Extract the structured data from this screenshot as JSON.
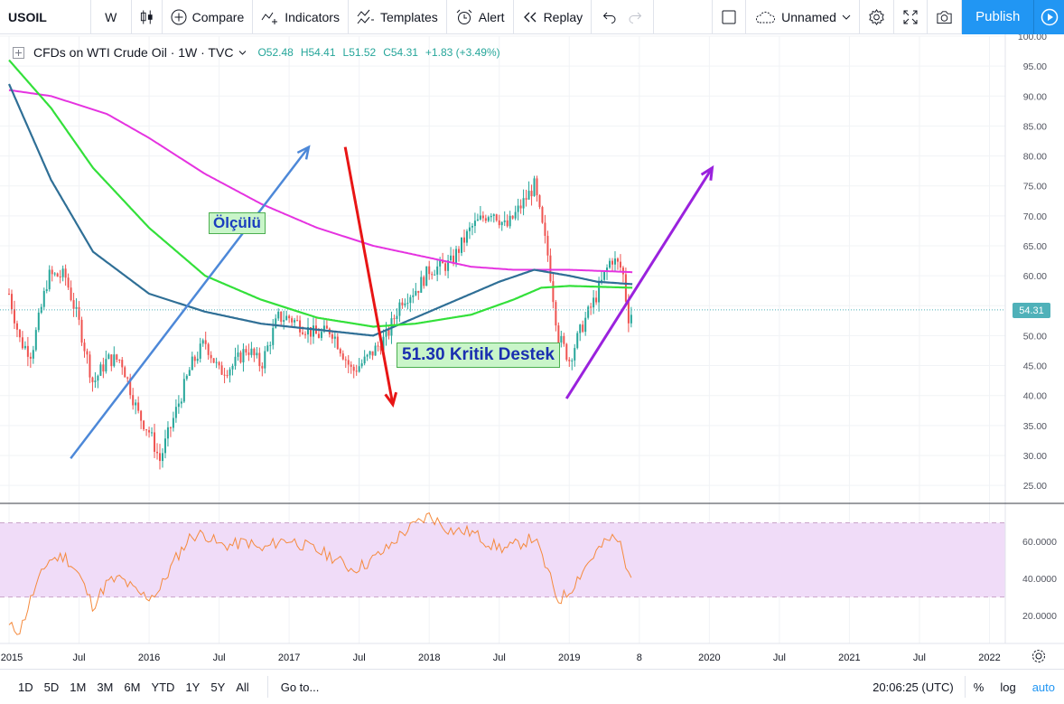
{
  "toolbar": {
    "symbol": "USOIL",
    "interval": "W",
    "compare": "Compare",
    "indicators": "Indicators",
    "templates": "Templates",
    "alert": "Alert",
    "replay": "Replay",
    "layout_name": "Unnamed",
    "publish": "Publish"
  },
  "legend": {
    "title": "CFDs on WTI Crude Oil · 1W · TVC",
    "open": "O52.48",
    "high": "H54.41",
    "low": "L51.52",
    "close": "C54.31",
    "change": "+1.83 (+3.49%)"
  },
  "annotations": {
    "olculu": "Ölçülü",
    "destek": "51.30 Kritik Destek"
  },
  "price_tag": "54.31",
  "colors": {
    "ema_green": "#33e03a",
    "sma_blue": "#2f6f96",
    "sma_magenta": "#e533e0",
    "rsi": "#f58a3d",
    "rsi_band": "#f0dcf8",
    "arrow_blue": "#4d88d8",
    "arrow_red": "#e81515",
    "arrow_purple": "#9a22dd",
    "up": "#26a69a",
    "down": "#ef5350"
  },
  "chart_data": {
    "type": "candlestick",
    "y_ticks": [
      "100.00",
      "95.00",
      "90.00",
      "85.00",
      "80.00",
      "75.00",
      "70.00",
      "65.00",
      "60.00",
      "55.00",
      "50.00",
      "45.00",
      "40.00",
      "35.00",
      "30.00",
      "25.00"
    ],
    "ylim": [
      22,
      100
    ],
    "x_ticks": [
      "2015",
      "Jul",
      "2016",
      "Jul",
      "2017",
      "Jul",
      "2018",
      "Jul",
      "2019",
      "8",
      "2020",
      "Jul",
      "2021",
      "Jul",
      "2022"
    ],
    "last_price": 54.31,
    "price_anchors": [
      [
        2015.0,
        57
      ],
      [
        2015.08,
        49
      ],
      [
        2015.16,
        47
      ],
      [
        2015.28,
        60
      ],
      [
        2015.4,
        60
      ],
      [
        2015.5,
        52
      ],
      [
        2015.6,
        42
      ],
      [
        2015.7,
        46
      ],
      [
        2015.8,
        46
      ],
      [
        2015.92,
        37
      ],
      [
        2016.0,
        34
      ],
      [
        2016.08,
        29
      ],
      [
        2016.1,
        31
      ],
      [
        2016.2,
        38
      ],
      [
        2016.3,
        45
      ],
      [
        2016.4,
        49
      ],
      [
        2016.5,
        44
      ],
      [
        2016.6,
        45
      ],
      [
        2016.7,
        48
      ],
      [
        2016.8,
        45
      ],
      [
        2016.92,
        53
      ],
      [
        2017.0,
        53
      ],
      [
        2017.2,
        50
      ],
      [
        2017.3,
        51
      ],
      [
        2017.45,
        44
      ],
      [
        2017.55,
        46
      ],
      [
        2017.7,
        50
      ],
      [
        2017.8,
        56
      ],
      [
        2017.92,
        58
      ],
      [
        2018.0,
        61
      ],
      [
        2018.15,
        62
      ],
      [
        2018.3,
        68
      ],
      [
        2018.45,
        71
      ],
      [
        2018.55,
        68
      ],
      [
        2018.75,
        75
      ],
      [
        2018.85,
        63
      ],
      [
        2018.92,
        50
      ],
      [
        2019.0,
        46
      ],
      [
        2019.1,
        52
      ],
      [
        2019.2,
        57
      ],
      [
        2019.3,
        63
      ],
      [
        2019.38,
        61
      ],
      [
        2019.42,
        53
      ],
      [
        2019.46,
        54.3
      ]
    ],
    "indicators": {
      "sma_200_magenta": [
        [
          2015.0,
          91
        ],
        [
          2015.3,
          90
        ],
        [
          2015.7,
          87
        ],
        [
          2016.0,
          83
        ],
        [
          2016.4,
          77
        ],
        [
          2016.8,
          72
        ],
        [
          2017.2,
          68
        ],
        [
          2017.6,
          65
        ],
        [
          2018.0,
          63
        ],
        [
          2018.3,
          61.5
        ],
        [
          2018.6,
          61
        ],
        [
          2019.0,
          61
        ],
        [
          2019.45,
          60.6
        ]
      ],
      "sma_100_blue": [
        [
          2015.0,
          92
        ],
        [
          2015.3,
          76
        ],
        [
          2015.6,
          64
        ],
        [
          2016.0,
          57
        ],
        [
          2016.4,
          54
        ],
        [
          2016.8,
          52
        ],
        [
          2017.2,
          51
        ],
        [
          2017.6,
          50
        ],
        [
          2017.9,
          53
        ],
        [
          2018.2,
          56
        ],
        [
          2018.5,
          59
        ],
        [
          2018.75,
          61
        ],
        [
          2019.0,
          60
        ],
        [
          2019.2,
          59
        ],
        [
          2019.45,
          58.6
        ]
      ],
      "ema_green": [
        [
          2015.0,
          96
        ],
        [
          2015.3,
          88
        ],
        [
          2015.6,
          78
        ],
        [
          2016.0,
          68
        ],
        [
          2016.4,
          60
        ],
        [
          2016.8,
          56
        ],
        [
          2017.2,
          53
        ],
        [
          2017.6,
          51.5
        ],
        [
          2017.9,
          52
        ],
        [
          2018.3,
          53.5
        ],
        [
          2018.6,
          56
        ],
        [
          2018.8,
          58
        ],
        [
          2019.0,
          58.3
        ],
        [
          2019.45,
          58
        ]
      ]
    },
    "rsi": {
      "y_ticks": [
        "60.0000",
        "40.0000",
        "20.0000"
      ],
      "ylim": [
        5,
        80
      ],
      "band": [
        30,
        70
      ],
      "anchors": [
        [
          2015.0,
          14
        ],
        [
          2015.08,
          12
        ],
        [
          2015.16,
          30
        ],
        [
          2015.28,
          50
        ],
        [
          2015.4,
          52
        ],
        [
          2015.5,
          42
        ],
        [
          2015.6,
          25
        ],
        [
          2015.7,
          38
        ],
        [
          2015.8,
          40
        ],
        [
          2015.92,
          32
        ],
        [
          2016.0,
          30
        ],
        [
          2016.08,
          34
        ],
        [
          2016.1,
          38
        ],
        [
          2016.2,
          52
        ],
        [
          2016.3,
          63
        ],
        [
          2016.4,
          64
        ],
        [
          2016.5,
          58
        ],
        [
          2016.6,
          58
        ],
        [
          2016.7,
          60
        ],
        [
          2016.8,
          55
        ],
        [
          2016.92,
          60
        ],
        [
          2017.0,
          61
        ],
        [
          2017.2,
          55
        ],
        [
          2017.3,
          52
        ],
        [
          2017.45,
          45
        ],
        [
          2017.55,
          48
        ],
        [
          2017.7,
          56
        ],
        [
          2017.8,
          64
        ],
        [
          2017.92,
          70
        ],
        [
          2018.0,
          74
        ],
        [
          2018.15,
          66
        ],
        [
          2018.3,
          65
        ],
        [
          2018.45,
          58
        ],
        [
          2018.55,
          56
        ],
        [
          2018.75,
          62
        ],
        [
          2018.85,
          43
        ],
        [
          2018.92,
          28
        ],
        [
          2019.0,
          33
        ],
        [
          2019.1,
          45
        ],
        [
          2019.2,
          55
        ],
        [
          2019.3,
          62
        ],
        [
          2019.38,
          58
        ],
        [
          2019.42,
          40
        ],
        [
          2019.46,
          42
        ]
      ]
    }
  },
  "bottom": {
    "ranges": [
      "1D",
      "5D",
      "1M",
      "3M",
      "6M",
      "YTD",
      "1Y",
      "5Y",
      "All"
    ],
    "goto": "Go to...",
    "clock": "20:06:25 (UTC)",
    "percent": "%",
    "log": "log",
    "auto": "auto"
  }
}
